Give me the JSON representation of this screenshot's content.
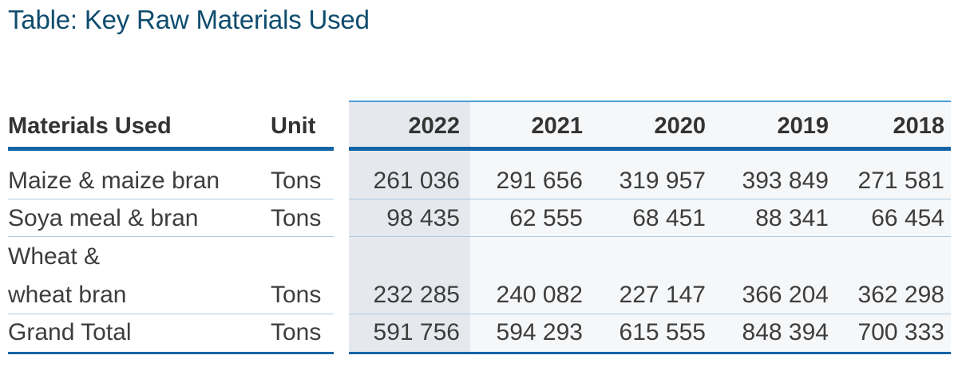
{
  "title": "Table: Key Raw Materials Used",
  "table": {
    "headers": {
      "material": "Materials Used",
      "unit": "Unit",
      "years": [
        "2022",
        "2021",
        "2020",
        "2019",
        "2018"
      ]
    },
    "rows": [
      {
        "material": [
          "Maize & maize bran"
        ],
        "unit": "Tons",
        "values": [
          "261 036",
          "291 656",
          "319 957",
          "393 849",
          "271 581"
        ]
      },
      {
        "material": [
          "Soya meal & bran"
        ],
        "unit": "Tons",
        "values": [
          "98 435",
          "62 555",
          "68 451",
          "88 341",
          "66 454"
        ]
      },
      {
        "material": [
          "Wheat &",
          "wheat bran"
        ],
        "unit": "Tons",
        "values": [
          "232 285",
          "240 082",
          "227 147",
          "366 204",
          "362 298"
        ]
      }
    ],
    "total": {
      "material": "Grand Total",
      "unit": "Tons",
      "values": [
        "591 756",
        "594 293",
        "615 555",
        "848 394",
        "700 333"
      ]
    }
  },
  "colors": {
    "title": "#0f4c6e",
    "rule": "#1565a6",
    "highlight": "#e5e9ee"
  }
}
